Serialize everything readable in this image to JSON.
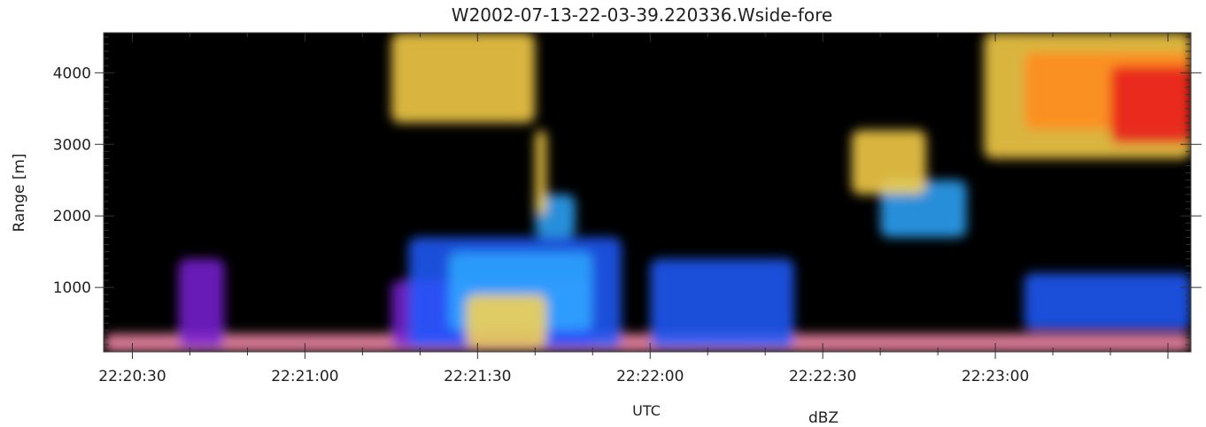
{
  "chart_data": {
    "type": "heatmap",
    "title": "W2002-07-13-22-03-39.220336.Wside-fore",
    "xlabel": "UTC",
    "ylabel": "Range  [m]",
    "colorbar_label": "dBZ",
    "x_range": [
      "22:20:25",
      "22:23:34"
    ],
    "y_range": [
      100,
      4560
    ],
    "x_ticks": [
      "22:20:30",
      "22:21:00",
      "22:21:30",
      "22:22:00",
      "22:22:30",
      "22:23:00"
    ],
    "y_ticks": [
      1000,
      2000,
      3000,
      4000
    ],
    "background_color": "#000000",
    "colors": {
      "weak": "#ff8fb0",
      "low": "#7a1fd6",
      "medium": "#1f5cff",
      "medium_high": "#2ea8ff",
      "high": "#ffd54a",
      "very_high": "#ff8a1f",
      "extreme": "#e61a1a"
    },
    "features": [
      {
        "level": "weak",
        "x_start": "22:20:25",
        "x_end": "22:23:34",
        "y_bottom": 100,
        "y_top": 350
      },
      {
        "level": "low",
        "x_start": "22:20:38",
        "x_end": "22:20:46",
        "y_bottom": 150,
        "y_top": 1400
      },
      {
        "level": "low",
        "x_start": "22:21:15",
        "x_end": "22:21:50",
        "y_bottom": 150,
        "y_top": 1100
      },
      {
        "level": "medium",
        "x_start": "22:21:18",
        "x_end": "22:21:55",
        "y_bottom": 150,
        "y_top": 1700
      },
      {
        "level": "medium_high",
        "x_start": "22:21:25",
        "x_end": "22:21:50",
        "y_bottom": 400,
        "y_top": 1500
      },
      {
        "level": "high",
        "x_start": "22:21:28",
        "x_end": "22:21:42",
        "y_bottom": 150,
        "y_top": 900
      },
      {
        "level": "medium_high",
        "x_start": "22:21:40",
        "x_end": "22:21:47",
        "y_bottom": 1700,
        "y_top": 2300
      },
      {
        "level": "high",
        "x_start": "22:21:40",
        "x_end": "22:21:42",
        "y_bottom": 2000,
        "y_top": 3200
      },
      {
        "level": "high",
        "x_start": "22:21:15",
        "x_end": "22:21:40",
        "y_bottom": 3300,
        "y_top": 4560
      },
      {
        "level": "medium",
        "x_start": "22:22:00",
        "x_end": "22:22:25",
        "y_bottom": 150,
        "y_top": 1400
      },
      {
        "level": "medium_high",
        "x_start": "22:22:40",
        "x_end": "22:22:55",
        "y_bottom": 1700,
        "y_top": 2500
      },
      {
        "level": "high",
        "x_start": "22:22:35",
        "x_end": "22:22:48",
        "y_bottom": 2300,
        "y_top": 3200
      },
      {
        "level": "medium",
        "x_start": "22:23:05",
        "x_end": "22:23:34",
        "y_bottom": 400,
        "y_top": 1200
      },
      {
        "level": "high",
        "x_start": "22:22:58",
        "x_end": "22:23:34",
        "y_bottom": 2800,
        "y_top": 4560
      },
      {
        "level": "very_high",
        "x_start": "22:23:05",
        "x_end": "22:23:34",
        "y_bottom": 3200,
        "y_top": 4300
      },
      {
        "level": "extreme",
        "x_start": "22:23:20",
        "x_end": "22:23:34",
        "y_bottom": 3000,
        "y_top": 4100
      }
    ]
  }
}
